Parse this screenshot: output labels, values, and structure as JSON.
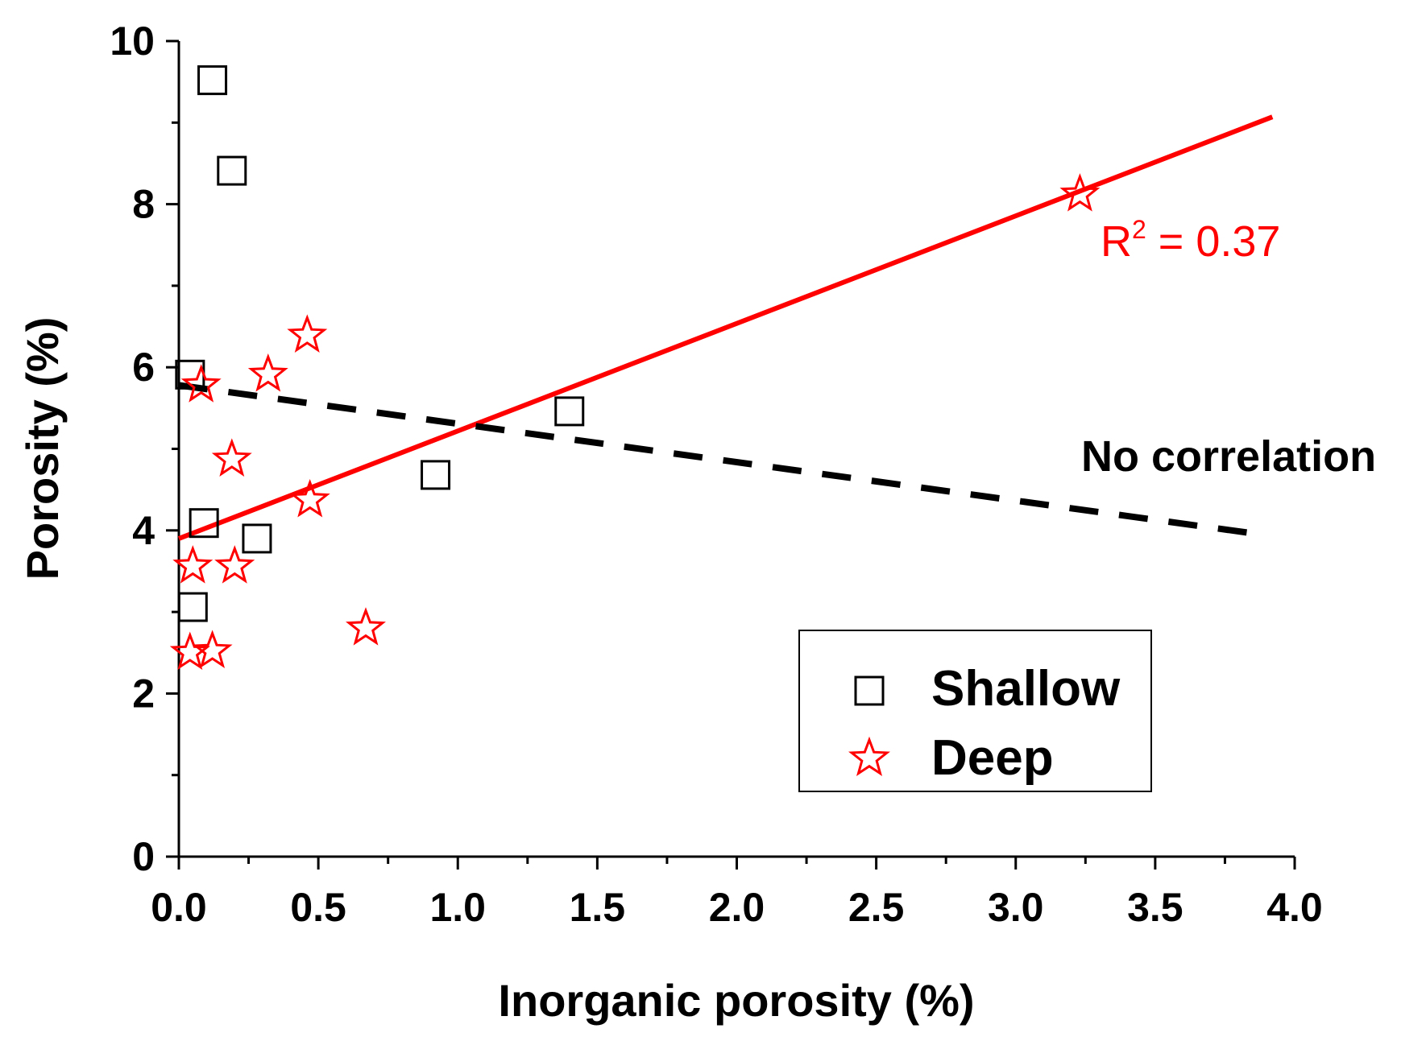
{
  "chart_data": {
    "type": "scatter",
    "xlabel": "Inorganic porosity (%)",
    "ylabel": "Porosity (%)",
    "xlim": [
      0,
      4.0
    ],
    "ylim": [
      0,
      10
    ],
    "xticks": [
      "0.0",
      "0.5",
      "1.0",
      "1.5",
      "2.0",
      "2.5",
      "3.0",
      "3.5",
      "4.0"
    ],
    "yticks": [
      "0",
      "2",
      "4",
      "6",
      "8",
      "10"
    ],
    "grid": false,
    "legend_position": "bottom-right",
    "series": [
      {
        "name": "Shallow",
        "marker": "square",
        "color": "#000000",
        "points": [
          [
            0.12,
            9.52
          ],
          [
            0.19,
            8.41
          ],
          [
            0.04,
            5.91
          ],
          [
            1.4,
            5.46
          ],
          [
            0.92,
            4.68
          ],
          [
            0.09,
            4.09
          ],
          [
            0.28,
            3.9
          ],
          [
            0.05,
            3.06
          ]
        ]
      },
      {
        "name": "Deep",
        "marker": "star",
        "color": "#ff0000",
        "points": [
          [
            3.23,
            8.12
          ],
          [
            0.46,
            6.39
          ],
          [
            0.32,
            5.91
          ],
          [
            0.08,
            5.78
          ],
          [
            0.19,
            4.87
          ],
          [
            0.47,
            4.37
          ],
          [
            0.05,
            3.56
          ],
          [
            0.2,
            3.56
          ],
          [
            0.67,
            2.8
          ],
          [
            0.04,
            2.5
          ],
          [
            0.12,
            2.52
          ]
        ]
      }
    ],
    "fits": [
      {
        "name": "deep-fit",
        "style": "solid",
        "color": "#ff0000",
        "x": [
          0,
          3.92
        ],
        "y": [
          3.9,
          9.07
        ]
      },
      {
        "name": "shallow-fit",
        "style": "dashed",
        "color": "#000000",
        "x": [
          0,
          3.88
        ],
        "y": [
          5.78,
          3.95
        ]
      }
    ],
    "annotations": {
      "r2_prefix": "R",
      "r2_sup": "2",
      "r2_rest": " = 0.37",
      "no_correlation": "No correlation"
    }
  }
}
